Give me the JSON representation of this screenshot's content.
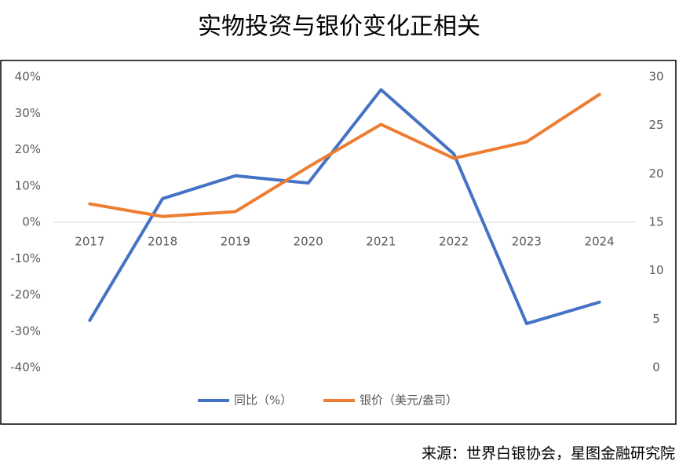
{
  "chart_data": {
    "type": "line",
    "title": "实物投资与银价变化正相关",
    "source": "来源：世界白银协会，星图金融研究院",
    "categories": [
      "2017",
      "2018",
      "2019",
      "2020",
      "2021",
      "2022",
      "2023",
      "2024"
    ],
    "series": [
      {
        "name": "同比（%）",
        "color": "#4472c4",
        "values": [
          -27.0,
          6.5,
          12.8,
          10.8,
          36.5,
          18.8,
          -27.9,
          -22.0
        ]
      },
      {
        "name": "银价（美元/盎司）",
        "color": "#ed7d31",
        "axis": "y2",
        "values": [
          16.9,
          15.6,
          16.1,
          20.7,
          25.1,
          21.6,
          23.3,
          28.2
        ]
      }
    ],
    "ylim": [
      -40,
      40
    ],
    "yticks": [
      {
        "value": -40,
        "label": "-40%"
      },
      {
        "value": -30,
        "label": "-30%"
      },
      {
        "value": -20,
        "label": "-20%"
      },
      {
        "value": -10,
        "label": "-10%"
      },
      {
        "value": 0,
        "label": "0%"
      },
      {
        "value": 10,
        "label": "10%"
      },
      {
        "value": 20,
        "label": "20%"
      },
      {
        "value": 30,
        "label": "30%"
      },
      {
        "value": 40,
        "label": "40%"
      }
    ],
    "y2lim": [
      0,
      30
    ],
    "y2ticks": [
      0,
      5,
      10,
      15,
      20,
      25,
      30
    ],
    "legend": "bottom"
  }
}
